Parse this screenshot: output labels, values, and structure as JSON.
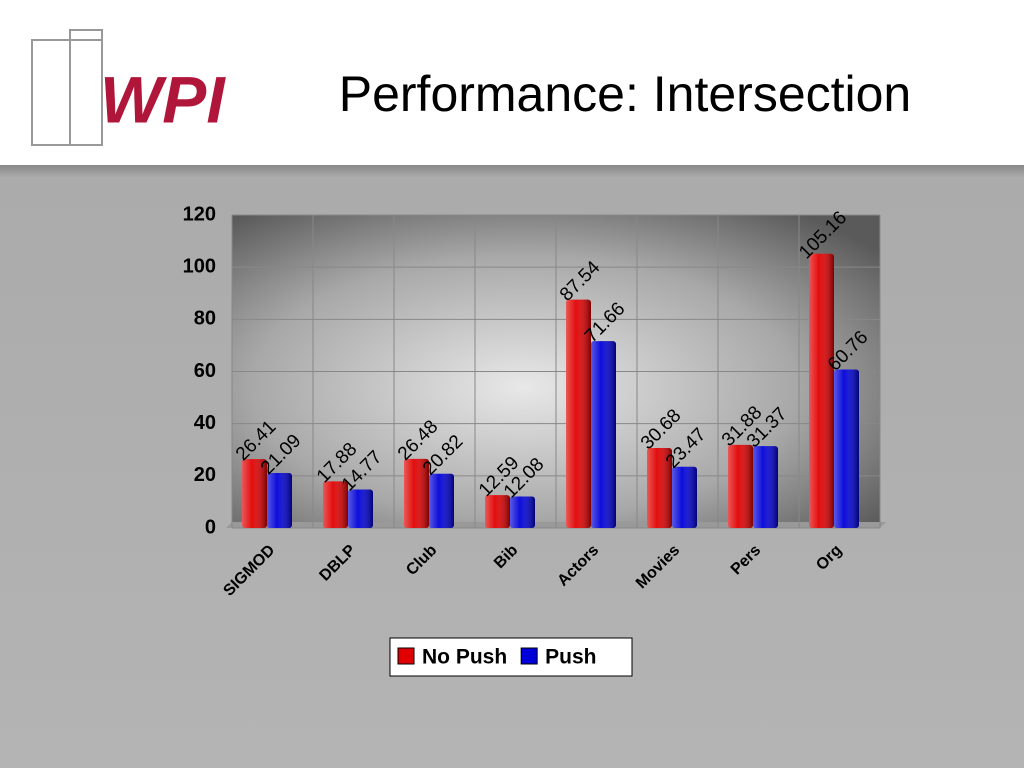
{
  "logo_text": "WPI",
  "chart_data": {
    "type": "bar",
    "title": "Performance: Intersection",
    "categories": [
      "SIGMOD",
      "DBLP",
      "Club",
      "Bib",
      "Actors",
      "Movies",
      "Pers",
      "Org"
    ],
    "series": [
      {
        "name": "No Push",
        "color": "#e00000",
        "values": [
          26.41,
          17.88,
          26.48,
          12.59,
          87.54,
          30.68,
          31.88,
          105.16
        ]
      },
      {
        "name": "Push",
        "color": "#0000d8",
        "values": [
          21.09,
          14.77,
          20.82,
          12.08,
          71.66,
          23.47,
          31.37,
          60.76
        ]
      }
    ],
    "ylim": [
      0,
      120
    ],
    "yticks": [
      0,
      20,
      40,
      60,
      80,
      100,
      120
    ],
    "grid": true,
    "legend": "bottom"
  }
}
